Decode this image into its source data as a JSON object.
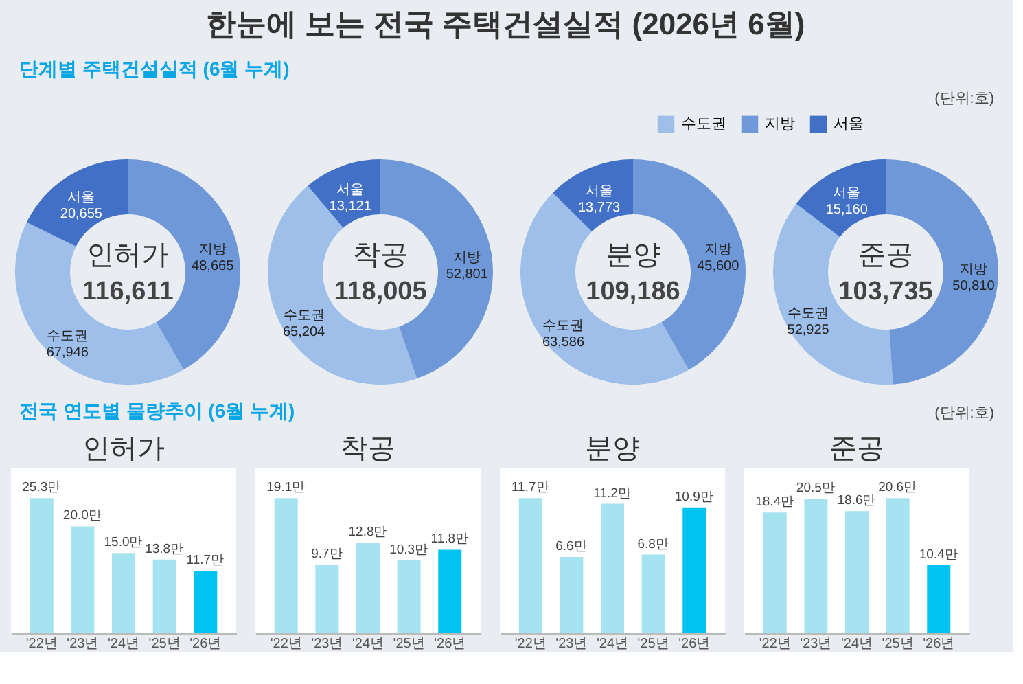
{
  "chart_data": [
    {
      "type": "other",
      "title": "한눈에 보는 전국 주택건설실적 (2026년 6월)",
      "annotations": [
        "단계별 주택건설실적 (6월 누계)",
        "(단위:호)"
      ]
    },
    {
      "type": "donut",
      "title": "인허가",
      "categories": [
        "수도권",
        "지방",
        "서울"
      ],
      "values": [
        67946,
        48665,
        20655
      ],
      "colors": [
        "#9dbfea",
        "#6e98d7",
        "#4270c6"
      ],
      "value_labels": [
        "67,946",
        "48,665",
        "20,655"
      ],
      "annotations": [
        "116,611"
      ],
      "legend": "top right"
    },
    {
      "type": "donut",
      "title": "착공",
      "categories": [
        "수도권",
        "지방",
        "서울"
      ],
      "values": [
        65204,
        52801,
        13121
      ],
      "colors": [
        "#9dbfea",
        "#6e98d7",
        "#4270c6"
      ],
      "value_labels": [
        "65,204",
        "52,801",
        "13,121"
      ],
      "annotations": [
        "118,005"
      ]
    },
    {
      "type": "donut",
      "title": "분양",
      "categories": [
        "수도권",
        "지방",
        "서울"
      ],
      "values": [
        63586,
        45600,
        13773
      ],
      "colors": [
        "#9dbfea",
        "#6e98d7",
        "#4270c6"
      ],
      "value_labels": [
        "63,586",
        "45,600",
        "13,773"
      ],
      "annotations": [
        "109,186"
      ]
    },
    {
      "type": "donut",
      "title": "준공",
      "categories": [
        "수도권",
        "지방",
        "서울"
      ],
      "values": [
        52925,
        50810,
        15160
      ],
      "colors": [
        "#9dbfea",
        "#6e98d7",
        "#4270c6"
      ],
      "value_labels": [
        "52,925",
        "50,810",
        "15,160"
      ],
      "annotations": [
        "103,735"
      ]
    },
    {
      "type": "other",
      "annotations": [
        "전국 연도별 물량추이 (6월 누계)",
        "(단위:호)"
      ]
    },
    {
      "type": "bar",
      "title": "인허가",
      "categories": [
        "'22년",
        "'23년",
        "'24년",
        "'25년",
        "'26년"
      ],
      "values": [
        25.3,
        20.0,
        15.0,
        13.8,
        11.7
      ],
      "colors": [
        "#a5e3f0",
        "#a5e3f0",
        "#a5e3f0",
        "#a5e3f0",
        "#00c3f2"
      ],
      "value_labels": [
        "25.3만",
        "20.0만",
        "15.0만",
        "13.8만",
        "11.7만"
      ],
      "tick_labels": "x"
    },
    {
      "type": "bar",
      "title": "착공",
      "categories": [
        "'22년",
        "'23년",
        "'24년",
        "'25년",
        "'26년"
      ],
      "values": [
        19.1,
        9.7,
        12.8,
        10.3,
        11.8
      ],
      "colors": [
        "#a5e3f0",
        "#a5e3f0",
        "#a5e3f0",
        "#a5e3f0",
        "#00c3f2"
      ],
      "value_labels": [
        "19.1만",
        "9.7만",
        "12.8만",
        "10.3만",
        "11.8만"
      ],
      "tick_labels": "x"
    },
    {
      "type": "bar",
      "title": "분양",
      "categories": [
        "'22년",
        "'23년",
        "'24년",
        "'25년",
        "'26년"
      ],
      "values": [
        11.7,
        6.6,
        11.2,
        6.8,
        10.9
      ],
      "colors": [
        "#a5e3f0",
        "#a5e3f0",
        "#a5e3f0",
        "#a5e3f0",
        "#00c3f2"
      ],
      "value_labels": [
        "11.7만",
        "6.6만",
        "11.2만",
        "6.8만",
        "10.9만"
      ],
      "tick_labels": "x"
    },
    {
      "type": "bar",
      "title": "준공",
      "categories": [
        "'22년",
        "'23년",
        "'24년",
        "'25년",
        "'26년"
      ],
      "values": [
        18.4,
        20.5,
        18.6,
        20.6,
        10.4
      ],
      "colors": [
        "#a5e3f0",
        "#a5e3f0",
        "#a5e3f0",
        "#a5e3f0",
        "#00c3f2"
      ],
      "value_labels": [
        "18.4만",
        "20.5만",
        "18.6만",
        "20.6만",
        "10.4만"
      ],
      "tick_labels": "x"
    }
  ]
}
